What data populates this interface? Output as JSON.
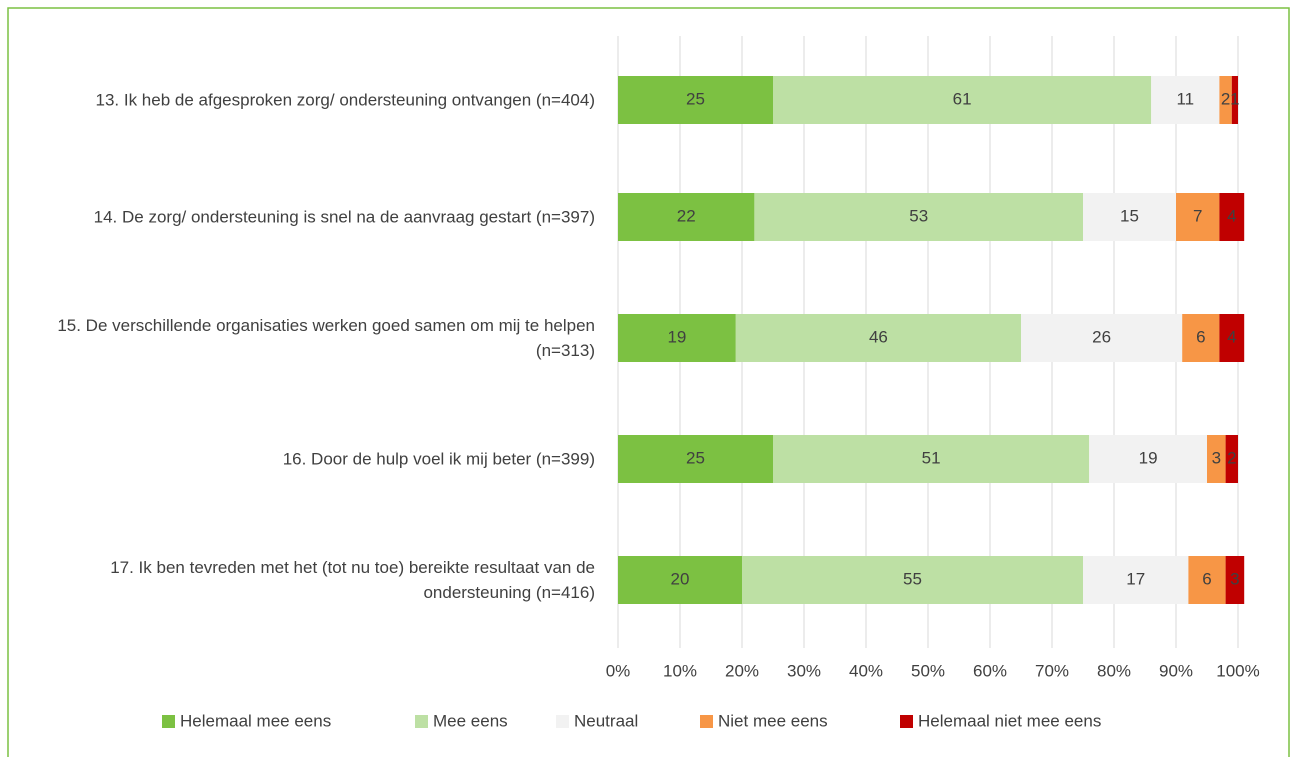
{
  "chart_data": {
    "type": "stacked_barh",
    "categories": [
      "13. Ik heb de afgesproken zorg/ ondersteuning ontvangen (n=404)",
      "14. De zorg/ ondersteuning is snel na de aanvraag gestart (n=397)",
      "15. De verschillende organisaties werken goed samen om mij te helpen (n=313)",
      "16. Door de hulp voel ik mij beter (n=399)",
      "17. Ik ben tevreden met het (tot nu toe) bereikte resultaat van de ondersteuning (n=416)"
    ],
    "series": [
      {
        "name": "Helemaal mee eens",
        "color": "#7cc142",
        "values": [
          25,
          22,
          19,
          25,
          20
        ]
      },
      {
        "name": "Mee eens",
        "color": "#bde0a4",
        "values": [
          61,
          53,
          46,
          51,
          55
        ]
      },
      {
        "name": "Neutraal",
        "color": "#f2f2f2",
        "values": [
          11,
          15,
          26,
          19,
          17
        ]
      },
      {
        "name": "Niet mee eens",
        "color": "#f79646",
        "values": [
          2,
          7,
          6,
          3,
          6
        ]
      },
      {
        "name": "Helemaal niet mee eens",
        "color": "#c00000",
        "values": [
          1,
          4,
          4,
          2,
          3
        ]
      }
    ],
    "xlim": [
      0,
      100
    ],
    "xticks": [
      {
        "value": 0,
        "label": "0%"
      },
      {
        "value": 10,
        "label": "10%"
      },
      {
        "value": 20,
        "label": "20%"
      },
      {
        "value": 30,
        "label": "30%"
      },
      {
        "value": 40,
        "label": "40%"
      },
      {
        "value": 50,
        "label": "50%"
      },
      {
        "value": 60,
        "label": "60%"
      },
      {
        "value": 70,
        "label": "70%"
      },
      {
        "value": 80,
        "label": "80%"
      },
      {
        "value": 90,
        "label": "90%"
      },
      {
        "value": 100,
        "label": "100%"
      }
    ],
    "grid": true,
    "legend": "bottom"
  }
}
